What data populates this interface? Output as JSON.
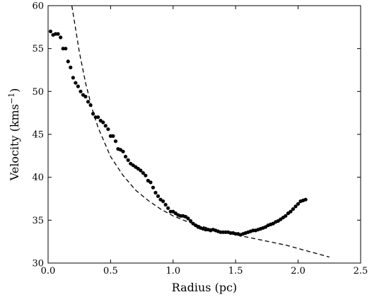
{
  "chart_data": {
    "type": "scatter",
    "xlabel": "Radius (pc)",
    "ylabel_main": "Velocity (kms",
    "ylabel_sup": "−1",
    "ylabel_close": ")",
    "xlim": [
      0.0,
      2.5
    ],
    "ylim": [
      30,
      60
    ],
    "xticks": [
      "0.0",
      "0.5",
      "1.0",
      "1.5",
      "2.0",
      "2.5"
    ],
    "yticks": [
      "30",
      "35",
      "40",
      "45",
      "50",
      "55",
      "60"
    ],
    "grid": false,
    "series": [
      {
        "kind": "points",
        "color": "#000000",
        "x": [
          0.02,
          0.04,
          0.06,
          0.08,
          0.1,
          0.12,
          0.14,
          0.16,
          0.18,
          0.2,
          0.22,
          0.24,
          0.26,
          0.28,
          0.3,
          0.32,
          0.34,
          0.36,
          0.38,
          0.4,
          0.42,
          0.44,
          0.46,
          0.48,
          0.5,
          0.52,
          0.54,
          0.56,
          0.58,
          0.6,
          0.62,
          0.64,
          0.66,
          0.68,
          0.7,
          0.72,
          0.74,
          0.76,
          0.78,
          0.8,
          0.82,
          0.84,
          0.86,
          0.88,
          0.9,
          0.92,
          0.94,
          0.96,
          0.98,
          1.0,
          1.02,
          1.04,
          1.06,
          1.08,
          1.1,
          1.12,
          1.14,
          1.16,
          1.18,
          1.2,
          1.22,
          1.24,
          1.26,
          1.28,
          1.3,
          1.32,
          1.34,
          1.36,
          1.38,
          1.4,
          1.42,
          1.44,
          1.46,
          1.48,
          1.5,
          1.52,
          1.54,
          1.56,
          1.58,
          1.6,
          1.62,
          1.64,
          1.66,
          1.68,
          1.7,
          1.72,
          1.74,
          1.76,
          1.78,
          1.8,
          1.82,
          1.84,
          1.86,
          1.88,
          1.9,
          1.92,
          1.94,
          1.96,
          1.98,
          2.0,
          2.02,
          2.04,
          2.06
        ],
        "y": [
          57.0,
          56.6,
          56.7,
          56.7,
          56.3,
          55.0,
          55.0,
          53.5,
          52.8,
          51.6,
          51.0,
          50.6,
          50.0,
          49.6,
          49.4,
          48.8,
          48.4,
          47.4,
          47.0,
          47.0,
          46.6,
          46.4,
          46.0,
          45.6,
          44.8,
          44.8,
          44.2,
          43.3,
          43.2,
          43.0,
          42.4,
          42.0,
          41.6,
          41.4,
          41.2,
          41.0,
          40.8,
          40.5,
          40.2,
          39.6,
          39.4,
          38.8,
          38.2,
          37.8,
          37.4,
          37.2,
          36.8,
          36.4,
          36.0,
          36.0,
          35.8,
          35.6,
          35.5,
          35.5,
          35.4,
          35.2,
          34.9,
          34.6,
          34.4,
          34.2,
          34.1,
          34.0,
          33.9,
          33.9,
          33.8,
          33.9,
          33.8,
          33.7,
          33.6,
          33.6,
          33.6,
          33.6,
          33.5,
          33.5,
          33.4,
          33.4,
          33.3,
          33.4,
          33.5,
          33.6,
          33.7,
          33.8,
          33.8,
          33.9,
          34.0,
          34.1,
          34.2,
          34.4,
          34.5,
          34.6,
          34.8,
          34.9,
          35.1,
          35.3,
          35.5,
          35.8,
          36.0,
          36.3,
          36.6,
          36.9,
          37.2,
          37.3,
          37.4
        ]
      },
      {
        "kind": "dashed-line",
        "color": "#000000",
        "x": [
          0.19,
          0.25,
          0.3,
          0.35,
          0.4,
          0.5,
          0.6,
          0.7,
          0.8,
          0.9,
          1.0,
          1.1,
          1.2,
          1.3,
          1.4,
          1.5,
          1.6,
          1.7,
          1.8,
          1.9,
          2.0,
          2.1,
          2.25
        ],
        "y": [
          60.0,
          54.6,
          51.0,
          48.1,
          45.8,
          42.4,
          40.2,
          38.5,
          37.3,
          36.3,
          35.5,
          34.9,
          34.4,
          34.0,
          33.6,
          33.3,
          33.0,
          32.7,
          32.4,
          32.1,
          31.7,
          31.3,
          30.7
        ]
      }
    ]
  }
}
